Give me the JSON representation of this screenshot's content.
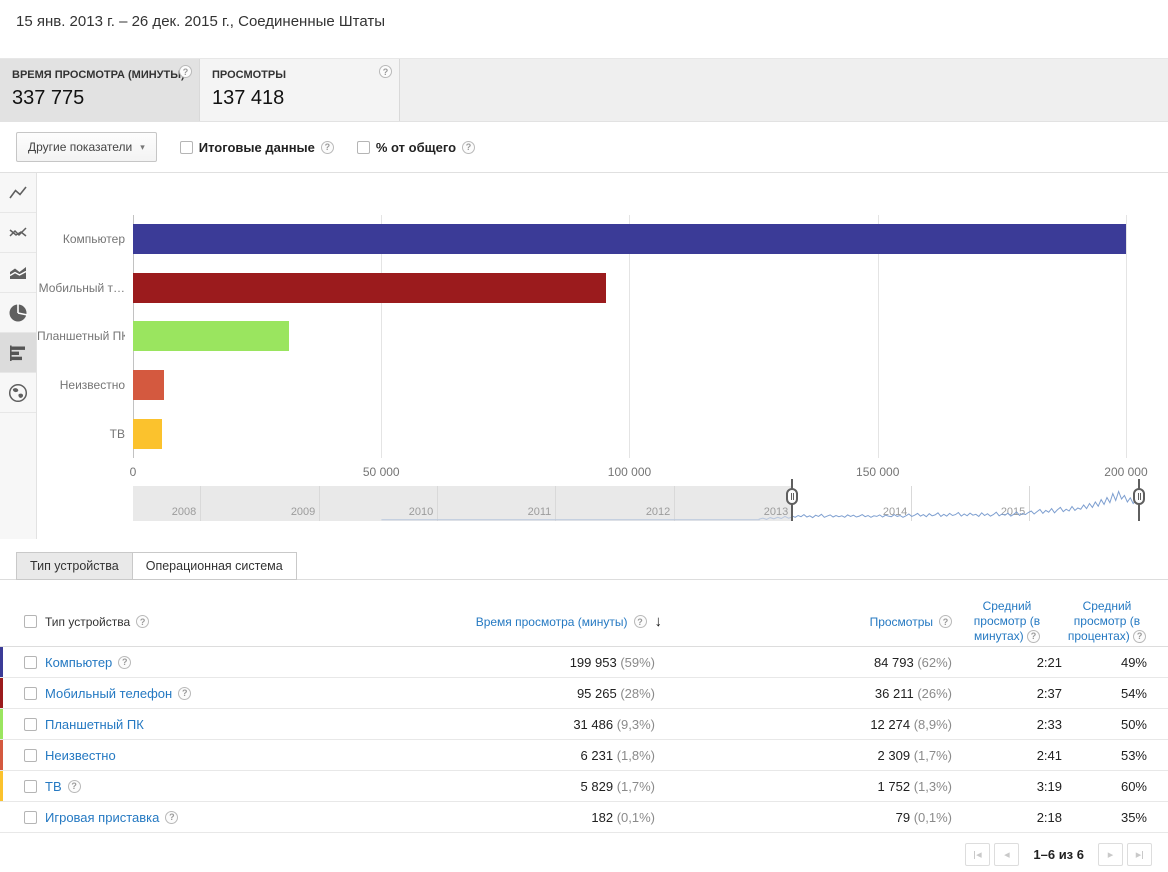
{
  "header": {
    "date_range": "15 янв. 2013 г. – 26 дек. 2015 г., Соединенные Штаты"
  },
  "metrics": [
    {
      "label": "ВРЕМЯ ПРОСМОТРА (МИНУТЫ)",
      "value": "337 775",
      "selected": true
    },
    {
      "label": "ПРОСМОТРЫ",
      "value": "137 418",
      "selected": false
    }
  ],
  "controls": {
    "other_metrics_label": "Другие показатели",
    "checkboxes": [
      {
        "label": "Итоговые данные",
        "checked": false
      },
      {
        "label": "% от общего",
        "checked": false
      }
    ]
  },
  "chart_sidebar": {
    "items": [
      "line-chart",
      "compare-lines-chart",
      "stacked-area-chart",
      "pie-chart",
      "horizontal-bar-chart",
      "map-chart"
    ],
    "selected_index": 4
  },
  "chart_data": {
    "type": "bar",
    "orientation": "horizontal",
    "title": "",
    "xlabel": "Время просмотра (минуты)",
    "categories": [
      "Компьютер",
      "Мобильный т…",
      "Планшетный ПК",
      "Неизвестно",
      "ТВ"
    ],
    "values": [
      199953,
      95265,
      31486,
      6231,
      5829
    ],
    "colors": [
      "#3b3b97",
      "#9b1b1d",
      "#9ae55f",
      "#d4593f",
      "#fbc22d"
    ],
    "xlim": [
      0,
      200000
    ],
    "grid": true,
    "legend": "none",
    "ticks": [
      {
        "value": 0,
        "label": "0"
      },
      {
        "value": 50000,
        "label": "50 000"
      },
      {
        "value": 100000,
        "label": "100 000"
      },
      {
        "value": 150000,
        "label": "150 000"
      },
      {
        "value": 200000,
        "label": "200 000"
      }
    ]
  },
  "timeline": {
    "years": [
      "2008",
      "2009",
      "2010",
      "2011",
      "2012",
      "2013",
      "2014",
      "2015"
    ],
    "year_end_fracs": [
      0.065,
      0.18,
      0.294,
      0.408,
      0.523,
      0.637,
      0.752,
      0.866
    ],
    "selection": {
      "start_frac": 0.637,
      "end_frac": 0.972
    },
    "sparkline": {
      "baseline": {
        "start": 0.24,
        "end": 0.605
      },
      "pre": {
        "start": 0.605,
        "end": 0.637,
        "values": [
          3,
          6,
          2,
          8,
          4,
          9,
          5,
          12,
          6,
          10
        ]
      },
      "main": {
        "start": 0.637,
        "end": 0.972,
        "values": [
          13,
          9,
          15,
          11,
          18,
          10,
          14,
          8,
          16,
          12,
          19,
          9,
          13,
          17,
          10,
          15,
          11,
          14,
          9,
          17,
          12,
          16,
          10,
          13,
          18,
          11,
          15,
          9,
          14,
          12,
          17,
          10,
          16,
          13,
          11,
          18,
          12,
          15,
          9,
          14,
          20,
          12,
          16,
          22,
          13,
          18,
          11,
          21,
          14,
          17,
          24,
          12,
          19,
          13,
          22,
          15,
          18,
          25,
          13,
          20,
          14,
          23,
          16,
          19,
          12,
          24,
          15,
          21,
          13,
          18,
          26,
          14,
          20,
          16,
          23,
          13,
          19,
          27,
          15,
          22,
          18,
          25,
          30,
          20,
          28,
          35,
          22,
          32,
          26,
          38,
          24,
          34,
          42,
          28,
          36,
          30,
          45,
          32,
          40,
          36,
          50,
          38,
          55,
          42,
          60,
          46,
          68,
          52,
          75,
          58,
          88,
          65,
          95,
          70,
          82,
          60,
          74,
          55,
          66,
          48
        ]
      }
    }
  },
  "tabs": [
    {
      "label": "Тип устройства",
      "selected": true
    },
    {
      "label": "Операционная система",
      "selected": false
    }
  ],
  "table": {
    "columns": [
      {
        "label": "Тип устройства",
        "help": true
      },
      {
        "label": "Время просмотра (минуты)",
        "help": true,
        "sorted_desc": true
      },
      {
        "label": "Просмотры",
        "help": true
      },
      {
        "label": "Средний просмотр (в минутах)",
        "help": true
      },
      {
        "label": "Средний просмотр (в процентах)",
        "help": true
      }
    ],
    "rows": [
      {
        "name": "Компьютер",
        "help": true,
        "color": "#3b3b97",
        "watch": "199 953",
        "watch_pct": "(59%)",
        "views": "84 793",
        "views_pct": "(62%)",
        "avg_min": "2:21",
        "avg_pct": "49%"
      },
      {
        "name": "Мобильный телефон",
        "help": true,
        "color": "#9b1b1d",
        "watch": "95 265",
        "watch_pct": "(28%)",
        "views": "36 211",
        "views_pct": "(26%)",
        "avg_min": "2:37",
        "avg_pct": "54%"
      },
      {
        "name": "Планшетный ПК",
        "help": false,
        "color": "#9ae55f",
        "watch": "31 486",
        "watch_pct": "(9,3%)",
        "views": "12 274",
        "views_pct": "(8,9%)",
        "avg_min": "2:33",
        "avg_pct": "50%"
      },
      {
        "name": "Неизвестно",
        "help": false,
        "color": "#d4593f",
        "watch": "6 231",
        "watch_pct": "(1,8%)",
        "views": "2 309",
        "views_pct": "(1,7%)",
        "avg_min": "2:41",
        "avg_pct": "53%"
      },
      {
        "name": "ТВ",
        "help": true,
        "color": "#fbc22d",
        "watch": "5 829",
        "watch_pct": "(1,7%)",
        "views": "1 752",
        "views_pct": "(1,3%)",
        "avg_min": "3:19",
        "avg_pct": "60%"
      },
      {
        "name": "Игровая приставка",
        "help": true,
        "color": null,
        "watch": "182",
        "watch_pct": "(0,1%)",
        "views": "79",
        "views_pct": "(0,1%)",
        "avg_min": "2:18",
        "avg_pct": "35%"
      }
    ]
  },
  "pagination": {
    "label": "1–6 из 6"
  },
  "icons": {
    "help": "?",
    "caret_down": "▾",
    "sort_desc": "↓",
    "page_prev": "◂",
    "page_next": "▸"
  },
  "palette": {
    "link_blue": "#2579c2",
    "spark_blue": "#7e9fd0",
    "spark_gray": "#b9c7de"
  }
}
